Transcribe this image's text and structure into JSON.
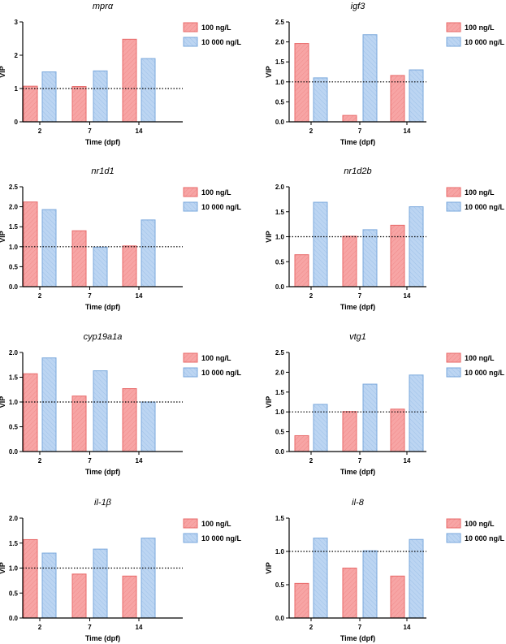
{
  "colors": {
    "low_fill": "#f7a5a5",
    "low_stroke": "#e86a6a",
    "high_fill": "#bcd5f2",
    "high_stroke": "#7aa8dc",
    "axis": "#000000",
    "reference_line": "#000000"
  },
  "chart_data": [
    {
      "type": "bar",
      "title": "mprα",
      "xlabel": "Time (dpf)",
      "ylabel": "VIP",
      "categories": [
        "2",
        "7",
        "14"
      ],
      "ylim": [
        0,
        3
      ],
      "yticks": [
        "0",
        "1",
        "2",
        "3"
      ],
      "reference_line": 1,
      "legend_position": "right",
      "series": [
        {
          "name": "100 ng/L",
          "values": [
            1.07,
            1.06,
            2.48
          ]
        },
        {
          "name": "10 000 ng/L",
          "values": [
            1.5,
            1.53,
            1.9
          ]
        }
      ]
    },
    {
      "type": "bar",
      "title": "igf3",
      "xlabel": "Time (dpf)",
      "ylabel": "VIP",
      "categories": [
        "2",
        "7",
        "14"
      ],
      "ylim": [
        0,
        2.5
      ],
      "yticks": [
        "0.0",
        "0.5",
        "1.0",
        "1.5",
        "2.0",
        "2.5"
      ],
      "reference_line": 1,
      "legend_position": "right",
      "series": [
        {
          "name": "100 ng/L",
          "values": [
            1.96,
            0.16,
            1.16
          ]
        },
        {
          "name": "10 000 ng/L",
          "values": [
            1.1,
            2.18,
            1.3
          ]
        }
      ]
    },
    {
      "type": "bar",
      "title": "nr1d1",
      "xlabel": "Time (dpf)",
      "ylabel": "VIP",
      "categories": [
        "2",
        "7",
        "14"
      ],
      "ylim": [
        0,
        2.5
      ],
      "yticks": [
        "0.0",
        "0.5",
        "1.0",
        "1.5",
        "2.0",
        "2.5"
      ],
      "reference_line": 1,
      "legend_position": "right",
      "series": [
        {
          "name": "100 ng/L",
          "values": [
            2.12,
            1.4,
            1.02
          ]
        },
        {
          "name": "10 000 ng/L",
          "values": [
            1.93,
            0.99,
            1.67
          ]
        }
      ]
    },
    {
      "type": "bar",
      "title": "nr1d2b",
      "xlabel": "Time (dpf)",
      "ylabel": "VIP",
      "categories": [
        "2",
        "7",
        "14"
      ],
      "ylim": [
        0,
        2
      ],
      "yticks": [
        "0.0",
        "0.5",
        "1.0",
        "1.5",
        "2.0"
      ],
      "reference_line": 1,
      "legend_position": "right",
      "series": [
        {
          "name": "100 ng/L",
          "values": [
            0.64,
            1.01,
            1.23
          ]
        },
        {
          "name": "10 000 ng/L",
          "values": [
            1.69,
            1.14,
            1.6
          ]
        }
      ]
    },
    {
      "type": "bar",
      "title": "cyp19a1a",
      "xlabel": "Time (dpf)",
      "ylabel": "VIP",
      "categories": [
        "2",
        "7",
        "14"
      ],
      "ylim": [
        0,
        2
      ],
      "yticks": [
        "0.0",
        "0.5",
        "1.0",
        "1.5",
        "2.0"
      ],
      "reference_line": 1,
      "legend_position": "right",
      "series": [
        {
          "name": "100 ng/L",
          "values": [
            1.57,
            1.12,
            1.27
          ]
        },
        {
          "name": "10 000 ng/L",
          "values": [
            1.89,
            1.63,
            1.0
          ]
        }
      ]
    },
    {
      "type": "bar",
      "title": "vtg1",
      "xlabel": "Time (dpf)",
      "ylabel": "VIP",
      "categories": [
        "2",
        "7",
        "14"
      ],
      "ylim": [
        0,
        2.5
      ],
      "yticks": [
        "0.0",
        "0.5",
        "1.0",
        "1.5",
        "2.0",
        "2.5"
      ],
      "reference_line": 1,
      "legend_position": "right",
      "series": [
        {
          "name": "100 ng/L",
          "values": [
            0.4,
            1.01,
            1.07
          ]
        },
        {
          "name": "10 000 ng/L",
          "values": [
            1.19,
            1.7,
            1.93
          ]
        }
      ]
    },
    {
      "type": "bar",
      "title": "il-1β",
      "xlabel": "Time (dpf)",
      "ylabel": "VIP",
      "categories": [
        "2",
        "7",
        "14"
      ],
      "ylim": [
        0,
        2
      ],
      "yticks": [
        "0.0",
        "0.5",
        "1.0",
        "1.5",
        "2.0"
      ],
      "reference_line": 1,
      "legend_position": "right",
      "series": [
        {
          "name": "100 ng/L",
          "values": [
            1.57,
            0.88,
            0.84
          ]
        },
        {
          "name": "10 000 ng/L",
          "values": [
            1.3,
            1.38,
            1.6
          ]
        }
      ]
    },
    {
      "type": "bar",
      "title": "il-8",
      "xlabel": "Time (dpf)",
      "ylabel": "VIP",
      "categories": [
        "2",
        "7",
        "14"
      ],
      "ylim": [
        0,
        1.5
      ],
      "yticks": [
        "0.0",
        "0.5",
        "1.0",
        "1.5"
      ],
      "reference_line": 1,
      "legend_position": "right",
      "series": [
        {
          "name": "100 ng/L",
          "values": [
            0.52,
            0.75,
            0.63
          ]
        },
        {
          "name": "10 000 ng/L",
          "values": [
            1.2,
            1.01,
            1.18
          ]
        }
      ]
    }
  ]
}
